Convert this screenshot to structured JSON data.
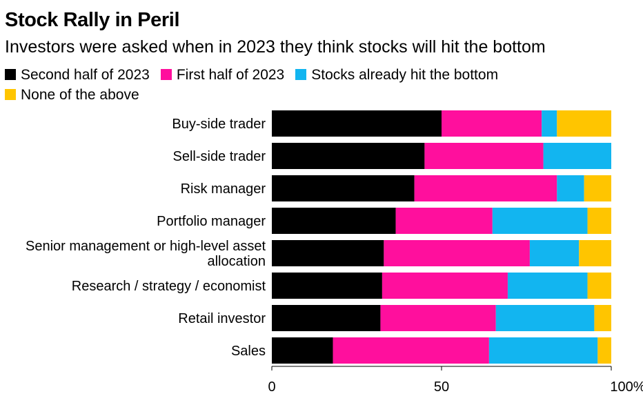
{
  "header": {
    "title": "Stock Rally in Peril",
    "subtitle": "Investors were asked when in 2023 they think stocks will hit the bottom"
  },
  "chart_data": {
    "type": "bar",
    "orientation": "horizontal",
    "stacked": true,
    "title": "Stock Rally in Peril",
    "subtitle": "Investors were asked when in 2023 they think stocks will hit the bottom",
    "categories": [
      [
        "Buy-side trader"
      ],
      [
        "Sell-side trader"
      ],
      [
        "Risk manager"
      ],
      [
        "Portfolio manager"
      ],
      [
        "Senior management or high-level asset",
        "allocation"
      ],
      [
        "Research / strategy / economist"
      ],
      [
        "Retail investor"
      ],
      [
        "Sales"
      ]
    ],
    "series": [
      {
        "name": "Second half of 2023",
        "color": "#000000",
        "values": [
          50,
          45,
          42,
          36.5,
          33,
          32.5,
          32,
          18
        ]
      },
      {
        "name": "First half of 2023",
        "color": "#ff0f9d",
        "values": [
          29.5,
          35,
          42,
          28.5,
          43,
          37,
          34,
          46
        ]
      },
      {
        "name": "Stocks already hit the bottom",
        "color": "#12b5f0",
        "values": [
          4.5,
          20,
          8,
          28,
          14.5,
          23.5,
          29,
          32
        ]
      },
      {
        "name": "None of the above",
        "color": "#ffc500",
        "values": [
          16,
          0,
          8,
          7,
          9.5,
          7,
          5,
          4
        ]
      }
    ],
    "xlim": [
      0,
      100
    ],
    "x_ticks": [
      {
        "value": 0,
        "label": "0"
      },
      {
        "value": 50,
        "label": "50"
      },
      {
        "value": 100,
        "label": "100%"
      }
    ],
    "grid": false,
    "legend_position": "top-left"
  }
}
